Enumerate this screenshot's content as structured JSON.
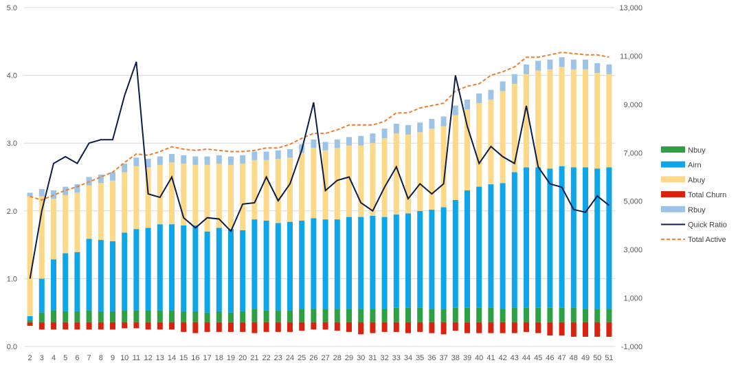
{
  "colors": {
    "nbuy": "#2ea043",
    "airn": "#0ea5e9",
    "abuy": "#fbd988",
    "churn": "#d9230f",
    "rbuy": "#9dc3e6",
    "quick_ratio": "#0b1c48",
    "total_active": "#ed7d31",
    "grid": "#d9d9d9",
    "axis_text": "#595959"
  },
  "legend": [
    {
      "key": "nbuy",
      "label": "Nbuy",
      "kind": "box"
    },
    {
      "key": "airn",
      "label": "Airn",
      "kind": "box"
    },
    {
      "key": "abuy",
      "label": "Abuy",
      "kind": "box"
    },
    {
      "key": "churn",
      "label": "Total Churn",
      "kind": "box"
    },
    {
      "key": "rbuy",
      "label": "Rbuy",
      "kind": "box"
    },
    {
      "key": "quick_ratio",
      "label": "Quick Ratio",
      "kind": "line"
    },
    {
      "key": "total_active",
      "label": "Total Active",
      "kind": "dash"
    }
  ],
  "chart_data": {
    "type": "bar",
    "stacked": true,
    "legend_position": "right",
    "grid": true,
    "title": "",
    "xlabel": "",
    "ylabel": "",
    "y2label": "",
    "left_axis": {
      "min": 0,
      "max": 5,
      "step": 1,
      "ticks": [
        "0.0",
        "1.0",
        "2.0",
        "3.0",
        "4.0",
        "5.0"
      ]
    },
    "right_axis": {
      "min": -1000,
      "max": 13000,
      "step": 2000,
      "ticks": [
        "-1,000",
        "1,000",
        "3,000",
        "5,000",
        "7,000",
        "9,000",
        "11,000",
        "13,000"
      ]
    },
    "categories": [
      "2",
      "3",
      "4",
      "5",
      "6",
      "7",
      "8",
      "9",
      "10",
      "11",
      "12",
      "13",
      "14",
      "15",
      "16",
      "17",
      "18",
      "19",
      "20",
      "21",
      "22",
      "23",
      "24",
      "25",
      "26",
      "27",
      "28",
      "29",
      "30",
      "31",
      "32",
      "33",
      "34",
      "35",
      "36",
      "37",
      "38",
      "39",
      "40",
      "41",
      "42",
      "43",
      "44",
      "45",
      "46",
      "47",
      "48",
      "49",
      "50",
      "51"
    ],
    "series": [
      {
        "name": "Nbuy",
        "axis": "right",
        "values": [
          100,
          400,
          500,
          450,
          450,
          500,
          450,
          450,
          500,
          500,
          500,
          500,
          500,
          450,
          450,
          400,
          450,
          400,
          450,
          550,
          500,
          500,
          500,
          550,
          550,
          550,
          550,
          550,
          550,
          550,
          550,
          600,
          600,
          600,
          550,
          550,
          600,
          600,
          600,
          600,
          550,
          600,
          600,
          600,
          600,
          600,
          600,
          550,
          550,
          550
        ]
      },
      {
        "name": "Airn",
        "axis": "right",
        "values": [
          150,
          1400,
          2100,
          2400,
          2450,
          2950,
          2950,
          2900,
          3200,
          3350,
          3400,
          3550,
          3550,
          3550,
          3550,
          3350,
          3450,
          3450,
          3350,
          3700,
          3700,
          3600,
          3650,
          3650,
          3750,
          3700,
          3700,
          3800,
          3800,
          3850,
          3800,
          3850,
          3900,
          4000,
          4100,
          4200,
          4450,
          4850,
          5000,
          5100,
          5200,
          5600,
          5800,
          5800,
          5750,
          5850,
          5800,
          5850,
          5800,
          5850
        ]
      },
      {
        "name": "Abuy",
        "axis": "right",
        "values": [
          4950,
          3400,
          2500,
          2400,
          2450,
          2200,
          2350,
          2500,
          2500,
          2600,
          2500,
          2450,
          2550,
          2550,
          2500,
          2750,
          2650,
          2650,
          2750,
          2450,
          2500,
          2650,
          2650,
          2800,
          2900,
          2850,
          2950,
          2950,
          2950,
          3000,
          3250,
          3350,
          3250,
          3250,
          3350,
          3350,
          3500,
          3350,
          3450,
          3500,
          3800,
          3650,
          3850,
          4000,
          4100,
          4100,
          4050,
          4050,
          3950,
          3850
        ]
      },
      {
        "name": "Rbuy",
        "axis": "right",
        "values": [
          150,
          300,
          350,
          350,
          350,
          350,
          350,
          350,
          350,
          350,
          350,
          350,
          350,
          350,
          350,
          350,
          350,
          350,
          350,
          350,
          350,
          350,
          350,
          350,
          350,
          350,
          350,
          350,
          400,
          400,
          400,
          400,
          400,
          400,
          400,
          400,
          400,
          400,
          400,
          400,
          400,
          400,
          400,
          400,
          400,
          400,
          400,
          400,
          400,
          400
        ]
      },
      {
        "name": "Total Churn",
        "axis": "right",
        "values": [
          -150,
          -300,
          -300,
          -300,
          -300,
          -300,
          -300,
          -300,
          -250,
          -250,
          -300,
          -300,
          -300,
          -400,
          -450,
          -400,
          -400,
          -400,
          -400,
          -450,
          -400,
          -400,
          -400,
          -350,
          -300,
          -300,
          -350,
          -400,
          -500,
          -450,
          -400,
          -400,
          -450,
          -400,
          -450,
          -500,
          -350,
          -450,
          -450,
          -450,
          -450,
          -450,
          -400,
          -450,
          -550,
          -550,
          -600,
          -600,
          -600,
          -600
        ]
      },
      {
        "name": "Total Active",
        "axis": "right",
        "values": [
          5200,
          5050,
          5250,
          5450,
          5600,
          5800,
          6000,
          6200,
          6600,
          6950,
          6900,
          7050,
          7250,
          7150,
          7100,
          7150,
          7100,
          7050,
          7050,
          7100,
          7200,
          7200,
          7350,
          7600,
          7800,
          7800,
          7950,
          8150,
          8150,
          8150,
          8300,
          8650,
          8650,
          8850,
          8950,
          9050,
          9550,
          9750,
          9850,
          10200,
          10350,
          10550,
          10950,
          10950,
          11050,
          11150,
          11100,
          11050,
          11050,
          10950
        ]
      },
      {
        "name": "Quick Ratio",
        "axis": "left",
        "values": [
          1.0,
          2.0,
          2.7,
          2.8,
          2.7,
          3.0,
          3.05,
          3.05,
          3.7,
          4.2,
          2.25,
          2.2,
          2.5,
          1.9,
          1.75,
          1.9,
          1.88,
          1.7,
          2.1,
          2.12,
          2.5,
          2.15,
          2.4,
          2.9,
          3.6,
          2.3,
          2.45,
          2.5,
          2.12,
          2.0,
          2.35,
          2.65,
          2.18,
          2.4,
          2.25,
          2.4,
          4.0,
          3.25,
          2.7,
          2.95,
          2.8,
          2.7,
          3.55,
          2.65,
          2.4,
          2.35,
          2.02,
          1.98,
          2.22,
          2.08
        ]
      }
    ]
  }
}
